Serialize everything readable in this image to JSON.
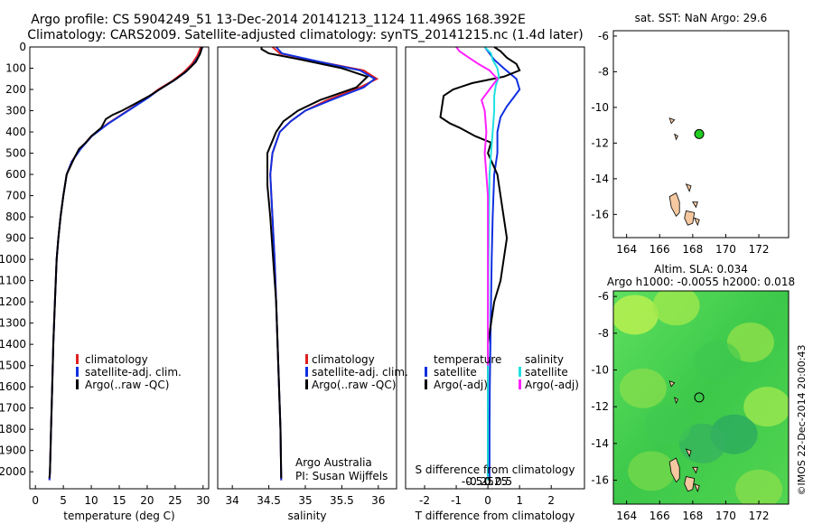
{
  "header": {
    "line1": "Argo profile: CS 5904249_51 13-Dec-2014 20141213_1124 11.496S 168.392E",
    "line2": "Climatology: CARS2009. Satellite-adjusted climatology: synTS_20141215.nc (1.4d later)"
  },
  "colors": {
    "climatology": "#e02020",
    "satellite": "#1030e0",
    "argo": "#000000",
    "sat_diff_T": "#1030e0",
    "sat_diff_S": "#20e0e0",
    "argo_diff_S": "#ff20ff",
    "land": "#f5c8a0",
    "profile_marker": "#22cc22"
  },
  "chart_data": [
    {
      "type": "line",
      "id": "temperature",
      "xlabel": "temperature (deg C)",
      "xlim": [
        -1,
        31
      ],
      "xticks": [
        0,
        5,
        10,
        15,
        20,
        25,
        30
      ],
      "ylim": [
        0,
        2080
      ],
      "yticks": [
        0,
        100,
        200,
        300,
        400,
        500,
        600,
        700,
        800,
        900,
        1000,
        1100,
        1200,
        1300,
        1400,
        1500,
        1600,
        1700,
        1800,
        1900,
        2000
      ],
      "legend": [
        "climatology",
        "satellite-adj. clim.",
        "Argo(..raw -QC)"
      ],
      "series": [
        {
          "name": "climatology",
          "color_key": "climatology",
          "x": [
            29.6,
            29.0,
            28.0,
            26.5,
            24.5,
            22.0,
            20.0,
            16.5,
            13.0,
            10.0,
            8.0,
            6.5,
            5.6,
            5.0,
            4.5,
            4.1,
            3.8,
            3.5,
            3.2,
            3.0,
            2.8,
            2.6,
            2.5
          ],
          "y": [
            0,
            40,
            80,
            120,
            160,
            200,
            240,
            300,
            360,
            420,
            480,
            540,
            600,
            700,
            800,
            900,
            1000,
            1200,
            1400,
            1600,
            1800,
            2000,
            2040
          ]
        },
        {
          "name": "satellite-adj. clim.",
          "color_key": "satellite",
          "x": [
            29.9,
            29.3,
            28.3,
            26.8,
            24.7,
            22.2,
            20.1,
            16.6,
            13.1,
            10.1,
            8.1,
            6.5,
            5.6,
            5.0,
            4.5,
            4.1,
            3.8,
            3.5,
            3.2,
            3.0,
            2.8,
            2.6,
            2.5
          ],
          "y": [
            0,
            40,
            80,
            120,
            160,
            200,
            240,
            300,
            360,
            420,
            480,
            540,
            600,
            700,
            800,
            900,
            1000,
            1200,
            1400,
            1600,
            1800,
            2000,
            2040
          ]
        },
        {
          "name": "Argo(..raw -QC)",
          "color_key": "argo",
          "x": [
            29.8,
            29.5,
            28.7,
            27.2,
            25.2,
            22.8,
            20.4,
            18.0,
            15.5,
            13.8,
            12.6,
            11.8,
            10.0,
            9.0,
            7.8,
            7.0,
            5.6,
            5.0,
            4.5,
            4.1,
            3.8,
            3.5,
            3.2,
            3.0,
            2.8,
            2.6,
            2.5
          ],
          "y": [
            0,
            30,
            70,
            110,
            150,
            190,
            230,
            265,
            300,
            320,
            340,
            380,
            420,
            450,
            480,
            520,
            600,
            700,
            800,
            900,
            1000,
            1200,
            1400,
            1600,
            1800,
            2000,
            2030
          ]
        }
      ]
    },
    {
      "type": "line",
      "id": "salinity",
      "xlabel": "salinity",
      "xlim": [
        33.8,
        36.25
      ],
      "xticks": [
        34,
        34.5,
        35,
        35.5,
        36
      ],
      "ylim": [
        0,
        2080
      ],
      "legend": [
        "climatology",
        "satellite-adj. clim.",
        "Argo(..raw -QC)"
      ],
      "annotation": [
        "Argo Australia",
        "PI: Susan Wijffels"
      ],
      "series": [
        {
          "name": "climatology",
          "color_key": "climatology",
          "x": [
            34.55,
            34.65,
            35.2,
            35.8,
            35.98,
            35.75,
            35.3,
            35.0,
            34.8,
            34.65,
            34.55,
            34.52,
            34.55,
            34.58,
            34.6,
            34.62,
            34.64,
            34.66,
            34.67
          ],
          "y": [
            0,
            30,
            70,
            110,
            150,
            190,
            250,
            300,
            350,
            400,
            500,
            600,
            800,
            1000,
            1200,
            1400,
            1600,
            1800,
            2040
          ]
        },
        {
          "name": "satellite-adj. clim.",
          "color_key": "satellite",
          "x": [
            34.6,
            34.68,
            35.2,
            35.75,
            35.95,
            35.8,
            35.35,
            35.0,
            34.8,
            34.65,
            34.55,
            34.52,
            34.55,
            34.58,
            34.6,
            34.62,
            34.64,
            34.66,
            34.67
          ],
          "y": [
            0,
            30,
            70,
            110,
            150,
            190,
            250,
            300,
            350,
            400,
            500,
            600,
            800,
            1000,
            1200,
            1400,
            1600,
            1800,
            2040
          ]
        },
        {
          "name": "Argo(..raw -QC)",
          "color_key": "argo",
          "x": [
            34.4,
            34.4,
            34.5,
            34.95,
            35.5,
            35.85,
            35.7,
            35.2,
            34.9,
            34.7,
            34.6,
            34.48,
            34.48,
            34.52,
            34.56,
            34.6,
            34.62,
            34.64,
            34.66,
            34.67
          ],
          "y": [
            0,
            10,
            30,
            60,
            100,
            140,
            190,
            250,
            300,
            350,
            400,
            500,
            650,
            800,
            1000,
            1200,
            1400,
            1600,
            1800,
            2030
          ]
        }
      ]
    },
    {
      "type": "line",
      "id": "difference",
      "xlabel": "T difference from climatology",
      "xlabel_top": "S difference from climatology",
      "xlim": [
        -2.6,
        3.05
      ],
      "xticks": [
        -2,
        -1,
        0,
        1,
        2
      ],
      "xticks_top_values": [
        -0.5,
        -0.25,
        0,
        0.25,
        0.5
      ],
      "ylim": [
        0,
        2080
      ],
      "legend_temperature": [
        "temperature",
        "satellite",
        "Argo(-adj)"
      ],
      "legend_salinity": [
        "salinity",
        "satellite",
        "Argo(-adj)"
      ],
      "series": [
        {
          "name": "satellite",
          "color_key": "sat_diff_T",
          "x": [
            -0.1,
            0.05,
            0.2,
            0.5,
            0.9,
            1.0,
            0.8,
            0.6,
            0.4,
            0.3,
            0.3,
            0.2,
            0.15,
            0.12,
            0.1,
            0.08,
            0.06,
            0.05,
            0.05
          ],
          "y": [
            0,
            30,
            60,
            100,
            150,
            200,
            240,
            280,
            330,
            400,
            500,
            600,
            800,
            1000,
            1200,
            1400,
            1600,
            1800,
            2040
          ]
        },
        {
          "name": "Argo(-adj)",
          "color_key": "argo",
          "x": [
            0.2,
            0.4,
            0.6,
            0.9,
            1.0,
            0.5,
            -0.5,
            -1.1,
            -1.4,
            -1.5,
            -1.2,
            -0.9,
            -0.4,
            0.1,
            0.0,
            0.3,
            0.4,
            0.5,
            0.6,
            0.5,
            0.4,
            0.2,
            0.1,
            0.0,
            0.0,
            0.0
          ],
          "y": [
            0,
            20,
            50,
            80,
            110,
            140,
            170,
            200,
            230,
            330,
            360,
            380,
            420,
            450,
            500,
            600,
            700,
            800,
            900,
            1000,
            1100,
            1200,
            1300,
            1400,
            1600,
            2030
          ]
        },
        {
          "name": "satellite",
          "color_key": "sat_diff_S",
          "x": [
            -0.1,
            0.1,
            0.15,
            0.3,
            0.35,
            0.25,
            0.2,
            0.2,
            0.15,
            0.1,
            0.05,
            0.03,
            0.02,
            0.01,
            0.0,
            0.0,
            0.0
          ],
          "y": [
            0,
            30,
            60,
            100,
            140,
            180,
            230,
            300,
            400,
            500,
            600,
            800,
            1000,
            1200,
            1400,
            1600,
            2040
          ]
        },
        {
          "name": "Argo(-adj)",
          "color_key": "argo_diff_S",
          "x": [
            -1.0,
            -0.9,
            -0.6,
            -0.3,
            0.05,
            0.3,
            0.05,
            -0.2,
            -0.1,
            -0.05,
            -0.1,
            -0.05,
            0.0,
            0.0,
            0.0,
            0.0,
            0.0
          ],
          "y": [
            0,
            20,
            50,
            80,
            110,
            150,
            200,
            250,
            300,
            400,
            500,
            600,
            700,
            800,
            1000,
            1300,
            1500
          ]
        }
      ]
    },
    {
      "type": "scatter",
      "id": "sst_map",
      "title": "sat. SST: NaN Argo: 29.6",
      "xlim": [
        163.2,
        173.8
      ],
      "ylim": [
        -17.3,
        -5.7
      ],
      "xticks": [
        164,
        166,
        168,
        170,
        172
      ],
      "yticks": [
        -6,
        -8,
        -10,
        -12,
        -14,
        -16
      ],
      "marker": {
        "lon": 168.392,
        "lat": -11.496,
        "color_key": "profile_marker",
        "filled": true
      }
    },
    {
      "type": "heatmap",
      "id": "sla_map",
      "title_line1": "Altim. SLA: 0.034",
      "title_line2": "Argo h1000: -0.0055 h2000: 0.018",
      "xlim": [
        163.2,
        173.8
      ],
      "ylim": [
        -17.3,
        -5.7
      ],
      "xticks": [
        164,
        166,
        168,
        170,
        172
      ],
      "yticks": [
        -6,
        -8,
        -10,
        -12,
        -14,
        -16
      ],
      "marker": {
        "lon": 168.392,
        "lat": -11.496,
        "filled": false
      }
    }
  ],
  "footer": {
    "imos_label": "©IMOS 22-Dec-2014 20:00:43"
  }
}
